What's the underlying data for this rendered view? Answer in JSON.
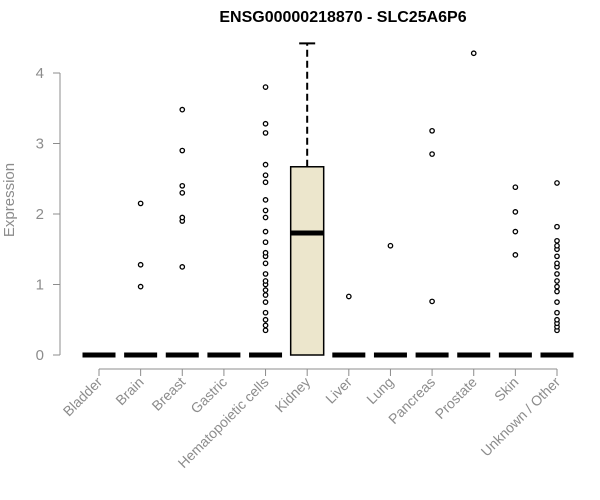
{
  "chart_data": {
    "type": "boxplot",
    "title": "ENSG00000218870 - SLC25A6P6",
    "xlabel": "",
    "ylabel": "Expression",
    "ylim": [
      0,
      4.45
    ],
    "yticks": [
      0,
      1,
      2,
      3,
      4
    ],
    "categories": [
      "Bladder",
      "Brain",
      "Breast",
      "Gastric",
      "Hematopoietic cells",
      "Kidney",
      "Liver",
      "Lung",
      "Pancreas",
      "Prostate",
      "Skin",
      "Unknown / Other"
    ],
    "box_fill": "#ece6cc",
    "boxes": [
      {
        "category": "Bladder",
        "q1": 0,
        "median": 0,
        "q3": 0,
        "whisker_low": 0,
        "whisker_high": 0,
        "outliers": []
      },
      {
        "category": "Brain",
        "q1": 0,
        "median": 0,
        "q3": 0,
        "whisker_low": 0,
        "whisker_high": 0,
        "outliers": [
          0.97,
          1.28,
          2.15
        ]
      },
      {
        "category": "Breast",
        "q1": 0,
        "median": 0,
        "q3": 0,
        "whisker_low": 0,
        "whisker_high": 0,
        "outliers": [
          1.25,
          1.9,
          1.95,
          2.3,
          2.4,
          2.9,
          3.48
        ]
      },
      {
        "category": "Gastric",
        "q1": 0,
        "median": 0,
        "q3": 0,
        "whisker_low": 0,
        "whisker_high": 0,
        "outliers": []
      },
      {
        "category": "Hematopoietic cells",
        "q1": 0,
        "median": 0,
        "q3": 0,
        "whisker_low": 0,
        "whisker_high": 0,
        "outliers": [
          0.35,
          0.42,
          0.5,
          0.6,
          0.75,
          0.85,
          0.92,
          1.0,
          1.05,
          1.15,
          1.3,
          1.4,
          1.45,
          1.6,
          1.75,
          1.95,
          2.05,
          2.2,
          2.45,
          2.55,
          2.7,
          3.15,
          3.28,
          3.8
        ]
      },
      {
        "category": "Kidney",
        "q1": 0,
        "median": 1.73,
        "q3": 2.67,
        "whisker_low": 0,
        "whisker_high": 4.42,
        "outliers": []
      },
      {
        "category": "Liver",
        "q1": 0,
        "median": 0,
        "q3": 0,
        "whisker_low": 0,
        "whisker_high": 0,
        "outliers": [
          0.83
        ]
      },
      {
        "category": "Lung",
        "q1": 0,
        "median": 0,
        "q3": 0,
        "whisker_low": 0,
        "whisker_high": 0,
        "outliers": [
          1.55
        ]
      },
      {
        "category": "Pancreas",
        "q1": 0,
        "median": 0,
        "q3": 0,
        "whisker_low": 0,
        "whisker_high": 0,
        "outliers": [
          0.76,
          2.85,
          3.18
        ]
      },
      {
        "category": "Prostate",
        "q1": 0,
        "median": 0,
        "q3": 0,
        "whisker_low": 0,
        "whisker_high": 0,
        "outliers": [
          4.28
        ]
      },
      {
        "category": "Skin",
        "q1": 0,
        "median": 0,
        "q3": 0,
        "whisker_low": 0,
        "whisker_high": 0,
        "outliers": [
          1.42,
          1.75,
          2.03,
          2.38
        ]
      },
      {
        "category": "Unknown / Other",
        "q1": 0,
        "median": 0,
        "q3": 0,
        "whisker_low": 0,
        "whisker_high": 0,
        "outliers": [
          0.35,
          0.4,
          0.45,
          0.5,
          0.6,
          0.75,
          0.9,
          0.97,
          1.05,
          1.15,
          1.25,
          1.3,
          1.4,
          1.5,
          1.55,
          1.62,
          1.82,
          2.44
        ]
      }
    ],
    "grid": false,
    "legend": "none"
  }
}
